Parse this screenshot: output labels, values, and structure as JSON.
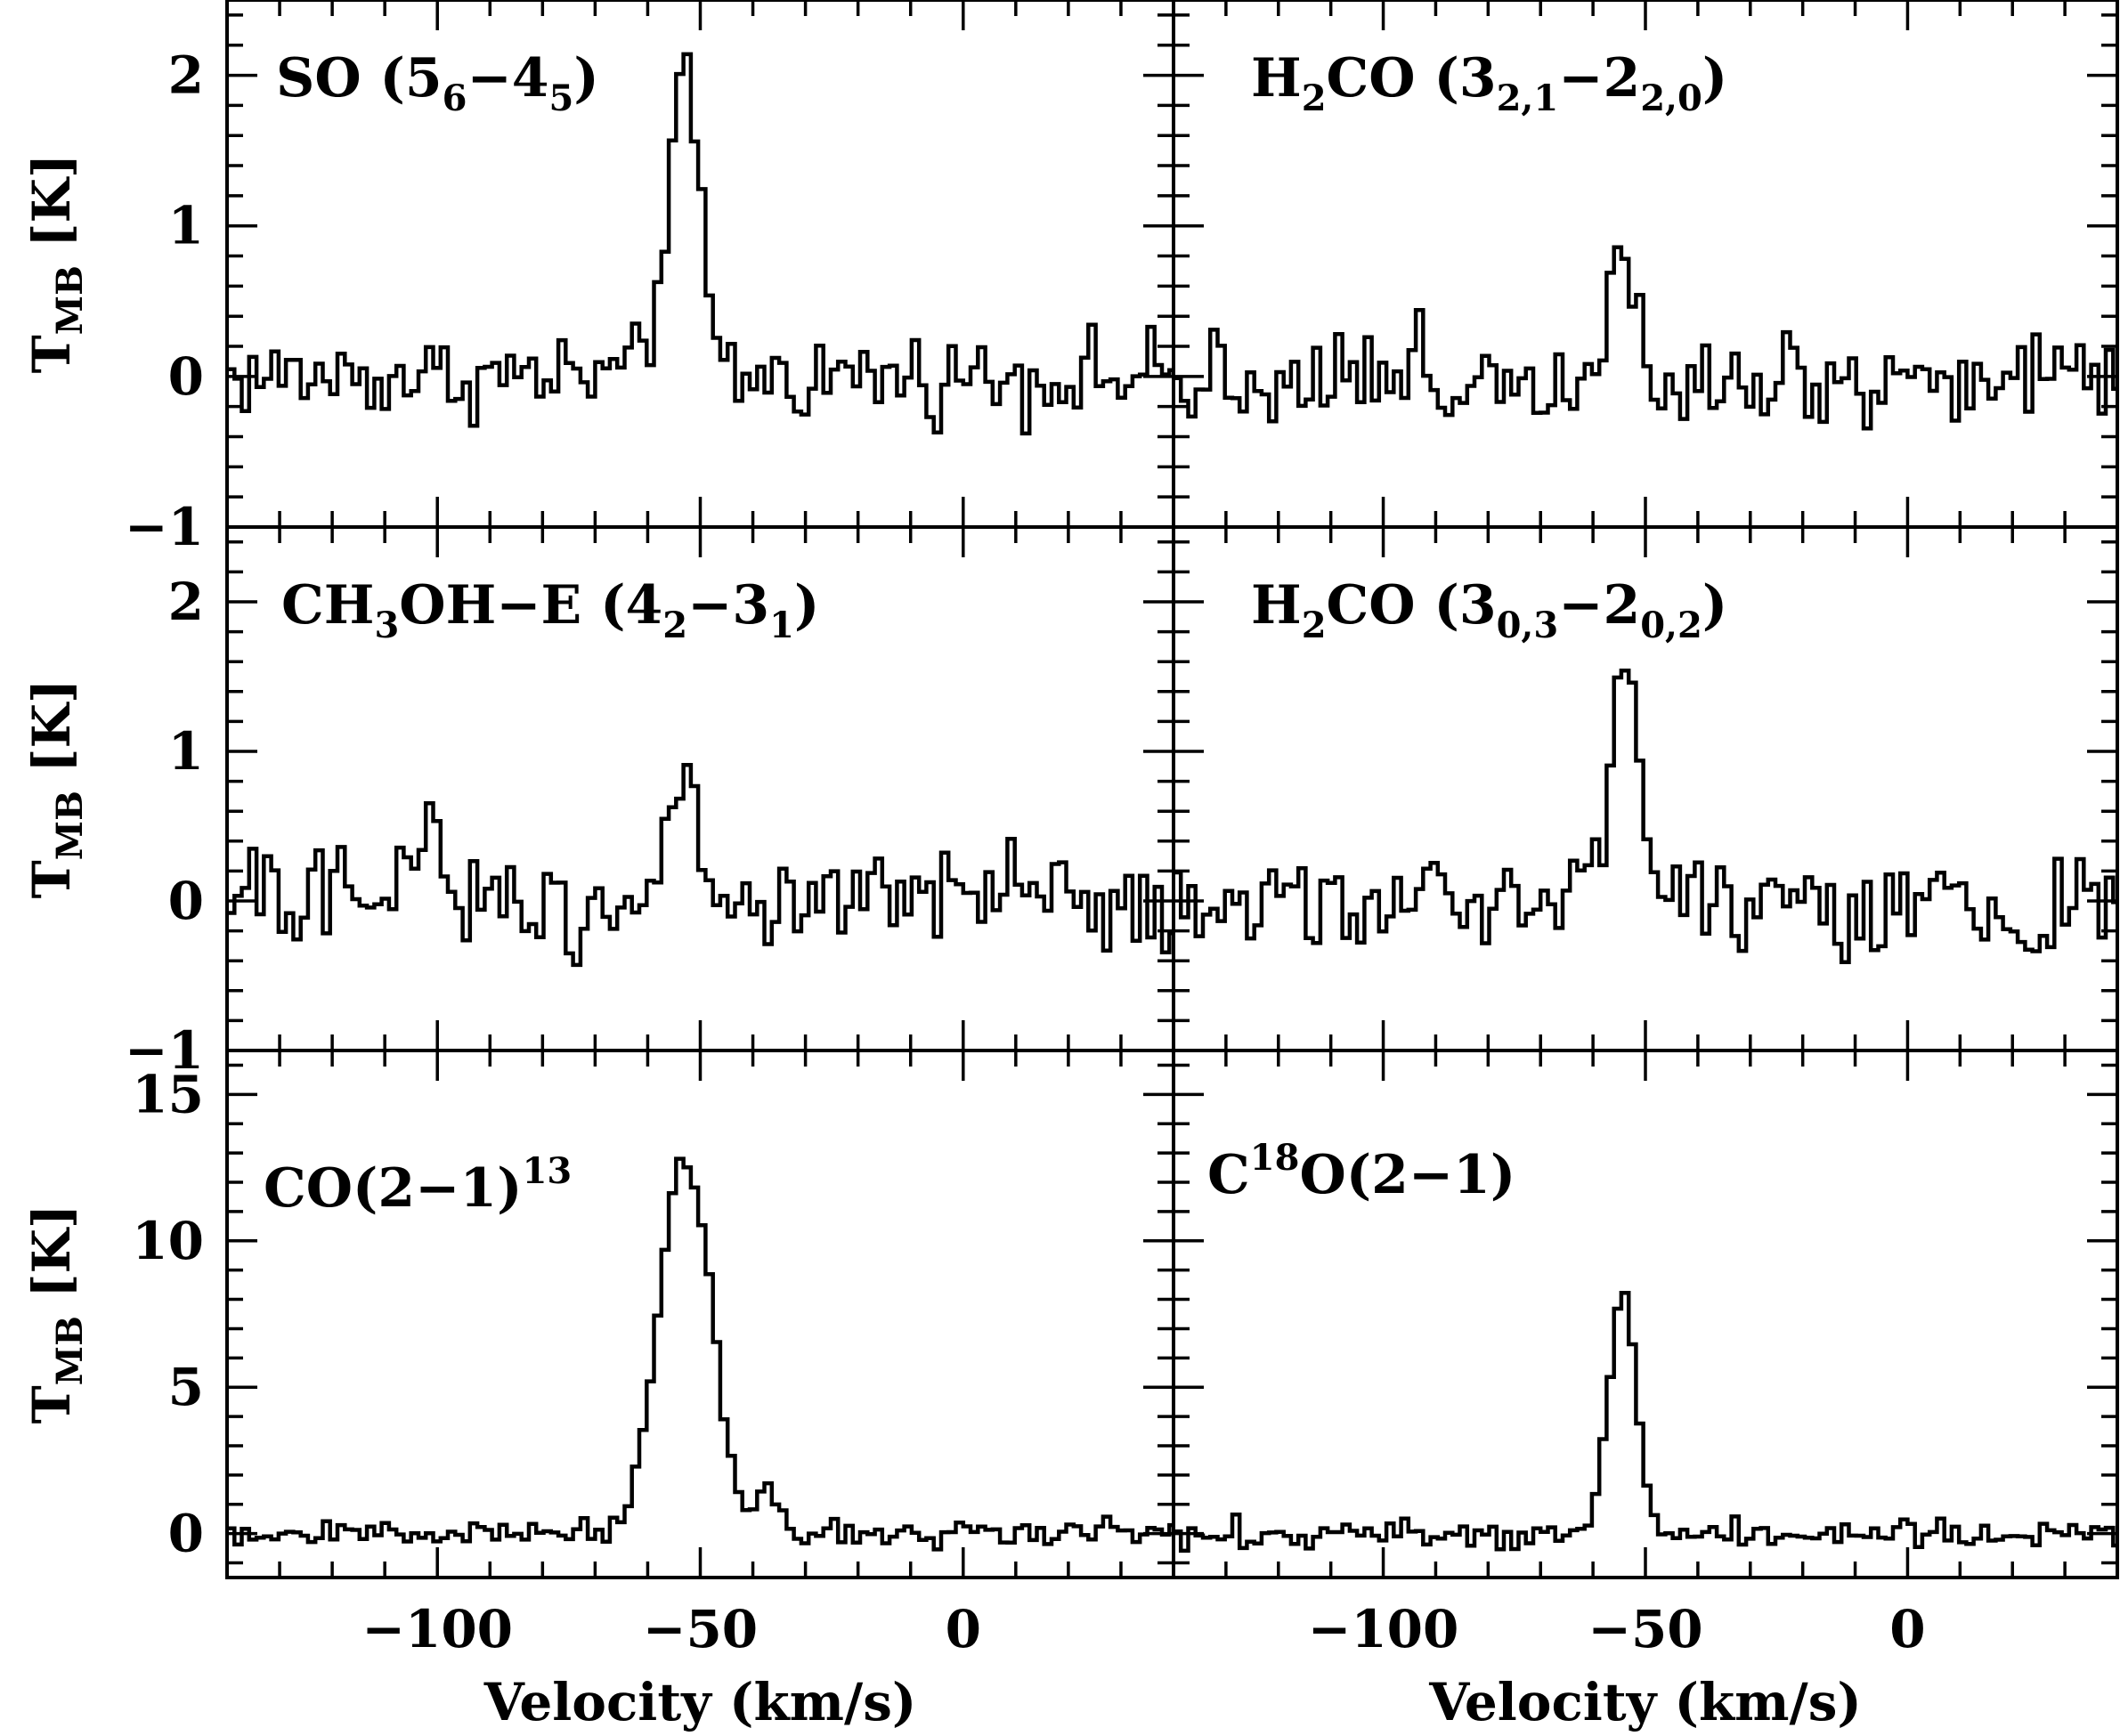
{
  "chart_data": [
    {
      "type": "line",
      "panel": "top-left",
      "label": {
        "pre": "SO (5",
        "sub1": "6",
        "mid": "−4",
        "sub2": "5",
        "post": ")"
      },
      "xlim": [
        -140,
        40
      ],
      "ylim": [
        -1,
        2.5
      ],
      "yticks": [
        -1,
        0,
        1,
        2
      ],
      "ytick_labels": [
        "−1",
        "0",
        "1",
        "2"
      ],
      "ylabel": "T_MB [K]",
      "peak": {
        "center": -54,
        "amplitude": 1.9,
        "width": 3.2
      },
      "extra_features": [],
      "noise": 0.14
    },
    {
      "type": "line",
      "panel": "top-right",
      "label": {
        "pre": "H",
        "sub1": "2",
        "mid": "CO (3",
        "sub2": "2,1",
        "mid2": "−2",
        "sub3": "2,0",
        "post": ")"
      },
      "xlim": [
        -140,
        40
      ],
      "ylim": [
        -1,
        2.5
      ],
      "peak": {
        "center": -55,
        "amplitude": 0.95,
        "width": 2.6
      },
      "extra_features": [],
      "noise": 0.17
    },
    {
      "type": "line",
      "panel": "middle-left",
      "label": {
        "pre": "CH",
        "sub1": "3",
        "mid": "OH−E (4",
        "sub2": "2",
        "mid2": "−3",
        "sub3": "1",
        "post": ")"
      },
      "xlim": [
        -140,
        40
      ],
      "ylim": [
        -1,
        2.5
      ],
      "yticks": [
        -1,
        0,
        1,
        2
      ],
      "ytick_labels": [
        "−1",
        "0",
        "1",
        "2"
      ],
      "ylabel": "T_MB [K]",
      "peak": {
        "center": -54,
        "amplitude": 0.85,
        "width": 3.0
      },
      "extra_features": [
        {
          "center": -103,
          "amplitude": 0.55,
          "width": 3.0
        }
      ],
      "noise": 0.17
    },
    {
      "type": "line",
      "panel": "middle-right",
      "label": {
        "pre": "H",
        "sub1": "2",
        "mid": "CO (3",
        "sub2": "0,3",
        "mid2": "−2",
        "sub3": "0,2",
        "post": ")"
      },
      "xlim": [
        -140,
        40
      ],
      "ylim": [
        -1,
        2.5
      ],
      "peak": {
        "center": -55,
        "amplitude": 1.7,
        "width": 2.6
      },
      "extra_features": [],
      "noise": 0.17
    },
    {
      "type": "line",
      "panel": "bottom-left",
      "label": {
        "sup": "13",
        "pre": "CO(2−1)"
      },
      "xlim": [
        -140,
        40
      ],
      "ylim": [
        -1.5,
        16.5
      ],
      "yticks": [
        0,
        5,
        10,
        15
      ],
      "ytick_labels": [
        "0",
        "5",
        "10",
        "15"
      ],
      "ylabel": "T_MB [K]",
      "xticks": [
        -100,
        -50,
        0
      ],
      "xtick_labels": [
        "−100",
        "−50",
        "0"
      ],
      "xlabel": "Velocity (km/s)",
      "peak": {
        "center": -53.5,
        "amplitude": 12.8,
        "width": 5.0
      },
      "extra_features": [
        {
          "center": -38,
          "amplitude": 1.8,
          "width": 1.6
        }
      ],
      "noise": 0.25
    },
    {
      "type": "line",
      "panel": "bottom-right",
      "label": {
        "pre": "C",
        "sup": "18",
        "post": "O(2−1)"
      },
      "xlim": [
        -140,
        40
      ],
      "ylim": [
        -1.5,
        16.5
      ],
      "xticks": [
        -100,
        -50,
        0
      ],
      "xtick_labels": [
        "−100",
        "−50",
        "0"
      ],
      "xlabel": "Velocity (km/s)",
      "peak": {
        "center": -55,
        "amplitude": 8.5,
        "width": 2.6
      },
      "extra_features": [],
      "noise": 0.25
    }
  ]
}
